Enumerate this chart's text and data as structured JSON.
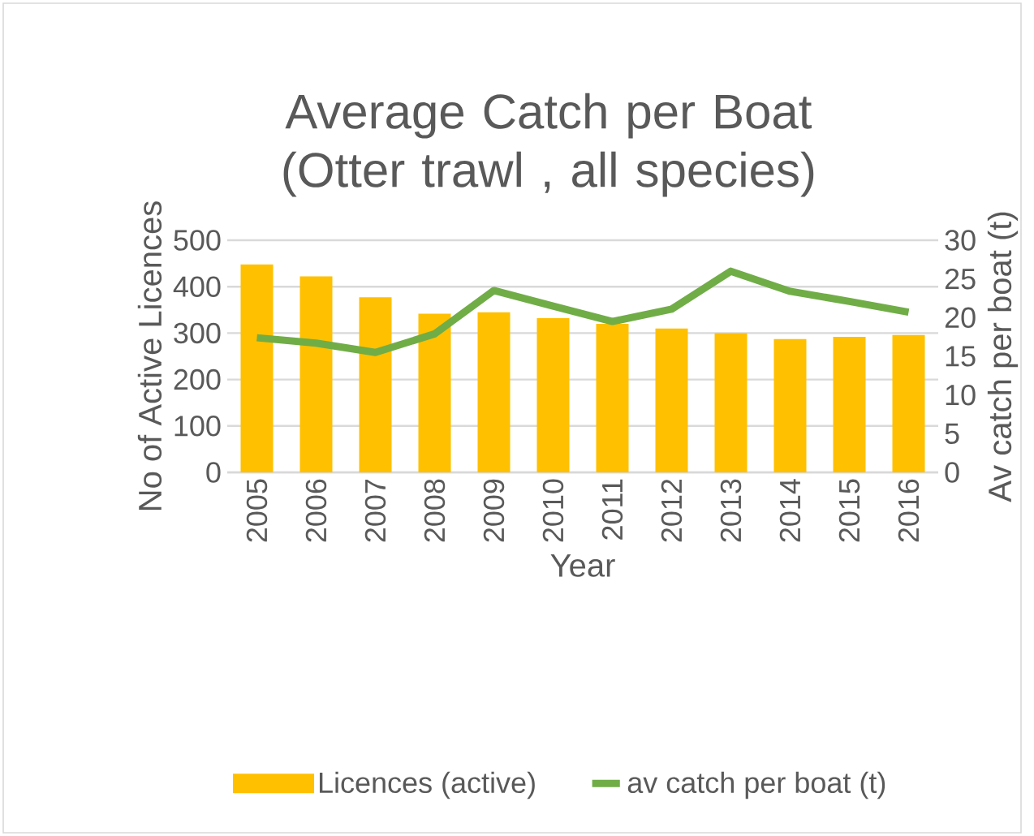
{
  "chart_data": {
    "type": "bar",
    "title": "Average Catch per Boat (Otter trawl , all species)",
    "xlabel": "Year",
    "ylabel": "No of Active Licences",
    "y2label": "Av catch per boat (t)",
    "categories": [
      "2005",
      "2006",
      "2007",
      "2008",
      "2009",
      "2010",
      "2011",
      "2012",
      "2013",
      "2014",
      "2015",
      "2016"
    ],
    "series": [
      {
        "name": "Licences (active)",
        "color": "#ffc000",
        "values": [
          448,
          422,
          377,
          342,
          345,
          332,
          320,
          310,
          300,
          287,
          292,
          296
        ]
      },
      {
        "name": "av catch per boat (t)",
        "type": "line",
        "axis": "y2",
        "color": "#70ad47",
        "values": [
          17.4,
          16.7,
          15.5,
          17.9,
          23.5,
          21.5,
          19.5,
          21.1,
          26.0,
          23.4,
          22.1,
          20.7
        ]
      }
    ],
    "ylim": [
      0,
      500
    ],
    "yticks": [
      0,
      100,
      200,
      300,
      400,
      500
    ],
    "y2lim": [
      0,
      30
    ],
    "y2ticks": [
      0,
      5,
      10,
      15,
      20,
      25,
      30
    ],
    "grid": "y",
    "legend": "bottom"
  }
}
